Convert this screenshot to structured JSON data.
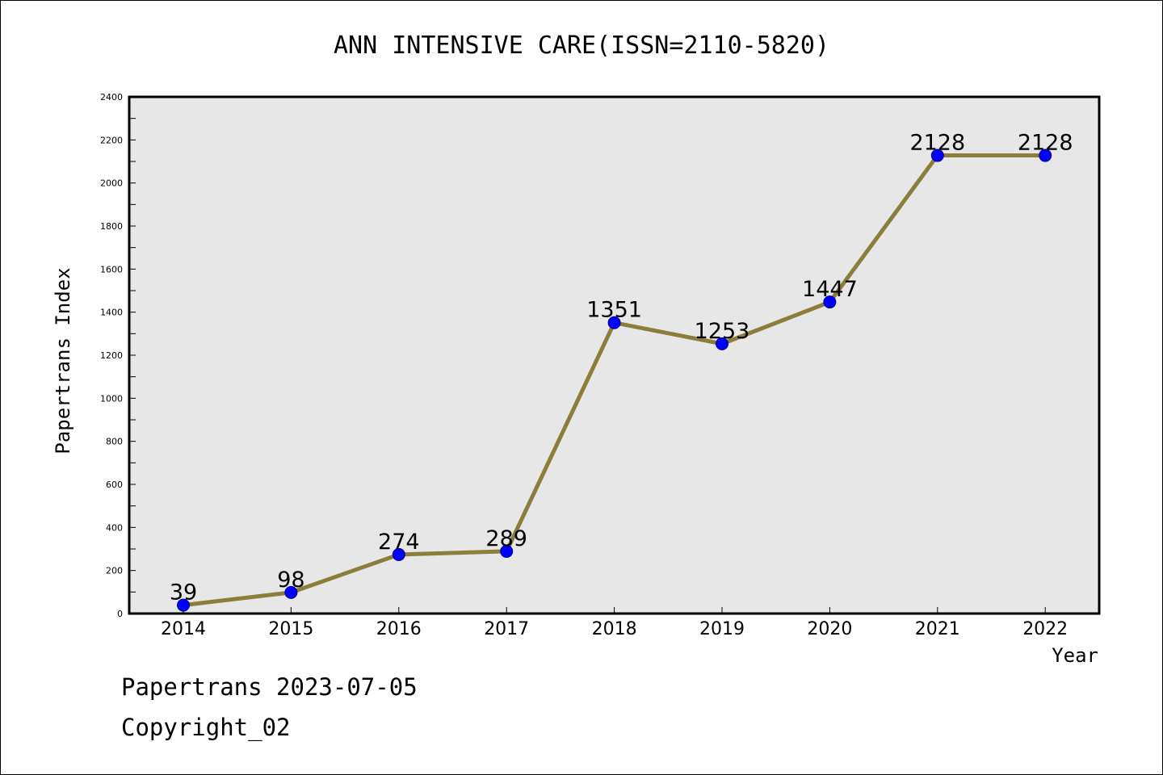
{
  "chart_data": {
    "type": "line",
    "title": "ANN INTENSIVE CARE(ISSN=2110-5820)",
    "xlabel": "Year",
    "ylabel": "Papertrans Index",
    "categories": [
      "2014",
      "2015",
      "2016",
      "2017",
      "2018",
      "2019",
      "2020",
      "2021",
      "2022"
    ],
    "series": [
      {
        "values": [
          39,
          98,
          274,
          289,
          1351,
          1253,
          1447,
          2128,
          2128
        ],
        "line_color": "#8b7d3a",
        "marker_color": "#0000ff"
      }
    ],
    "data_labels": [
      "39",
      "98",
      "274",
      "289",
      "1351",
      "1253",
      "1447",
      "2128",
      "2128"
    ],
    "ylim": [
      0,
      2400
    ],
    "yticks": [
      "0",
      "200",
      "400",
      "600",
      "800",
      "1000",
      "1200",
      "1400",
      "1600",
      "1800",
      "2000",
      "2200",
      "2400"
    ],
    "grid": false,
    "plot_background": "#e7e7e7"
  },
  "footer": {
    "date_line": "Papertrans 2023-07-05",
    "copyright_line": "Copyright_02"
  }
}
